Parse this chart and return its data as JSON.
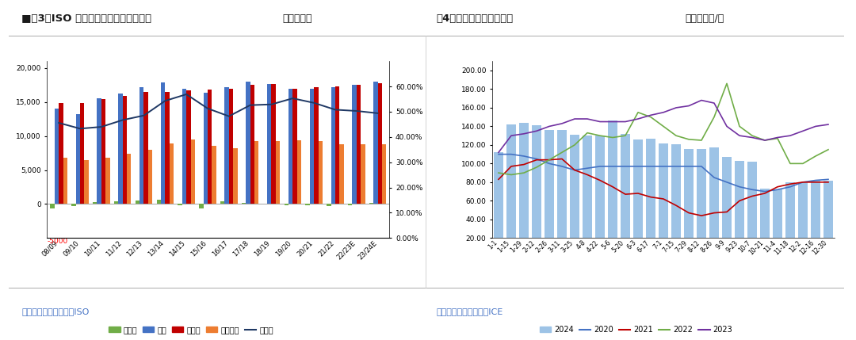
{
  "fig3": {
    "title_left": "■图3：ISO 对全球食糖供需格局的预估",
    "title_right": "单位：万吨",
    "categories": [
      "08/09",
      "09/10",
      "10/11",
      "11/12",
      "12/13",
      "13/14",
      "14/15",
      "15/16",
      "16/17",
      "17/18",
      "18/19",
      "19/20",
      "20/21",
      "21/22",
      "22/23E",
      "23/24E"
    ],
    "supply_gap": [
      -700,
      -300,
      250,
      450,
      550,
      650,
      -150,
      -600,
      400,
      150,
      50,
      -150,
      -200,
      -350,
      -150,
      200
    ],
    "production": [
      14000,
      13200,
      15500,
      16200,
      17200,
      17900,
      17000,
      16400,
      17200,
      18000,
      17600,
      16900,
      17000,
      17200,
      17500,
      18000
    ],
    "consumption": [
      14800,
      14900,
      15400,
      15900,
      16500,
      16500,
      16700,
      16800,
      17000,
      17500,
      17600,
      17000,
      17200,
      17300,
      17500,
      17800
    ],
    "end_stock": [
      6800,
      6400,
      6800,
      7400,
      8000,
      8900,
      9500,
      8600,
      8200,
      9200,
      9300,
      9400,
      9200,
      8800,
      8800,
      8800
    ],
    "stock_ratio": [
      0.456,
      0.433,
      0.44,
      0.467,
      0.485,
      0.543,
      0.569,
      0.513,
      0.482,
      0.526,
      0.529,
      0.553,
      0.535,
      0.508,
      0.503,
      0.494
    ],
    "bar_colors": {
      "supply_gap": "#70AD47",
      "production": "#4472C4",
      "consumption": "#C00000",
      "end_stock": "#ED7D31"
    },
    "line_color": "#1F3864",
    "legend_labels": [
      "供需差",
      "产量",
      "消费量",
      "期末库存",
      "库销比"
    ],
    "source": "数据来源：銀河期货，ISO",
    "ylim_left": [
      -5000,
      21000
    ],
    "ylim_right": [
      0.0,
      0.7
    ],
    "yticks_left": [
      0,
      5000,
      10000,
      15000,
      20000
    ],
    "yticks_right": [
      0.0,
      0.1,
      0.2,
      0.3,
      0.4,
      0.5,
      0.6
    ]
  },
  "fig4": {
    "title_left": "图4：原白糖主力合约价差",
    "title_right": "单位：美元/吨",
    "x_labels": [
      "1-1",
      "1-15",
      "1-29",
      "2-12",
      "2-26",
      "3-11",
      "3-25",
      "4-8",
      "4-22",
      "5-6",
      "5-20",
      "6-3",
      "6-17",
      "7-1",
      "7-15",
      "7-29",
      "8-12",
      "8-26",
      "9-9",
      "9-23",
      "10-7",
      "10-21",
      "11-4",
      "11-18",
      "12-2",
      "12-16",
      "12-30"
    ],
    "bar_2024": [
      112,
      142,
      144,
      141,
      136,
      136,
      131,
      130,
      130,
      146,
      132,
      126,
      127,
      122,
      121,
      116,
      116,
      117,
      107,
      103,
      102,
      73,
      72,
      80,
      80,
      82,
      82
    ],
    "line_2020": [
      110,
      110,
      108,
      105,
      100,
      97,
      93,
      95,
      97,
      97,
      97,
      97,
      97,
      97,
      97,
      97,
      97,
      85,
      80,
      75,
      72,
      70,
      72,
      75,
      80,
      82,
      83
    ],
    "line_2021": [
      83,
      97,
      99,
      104,
      104,
      105,
      93,
      88,
      82,
      75,
      67,
      68,
      64,
      62,
      55,
      47,
      44,
      47,
      48,
      60,
      65,
      68,
      75,
      78,
      80,
      80,
      80
    ],
    "line_2022": [
      90,
      88,
      90,
      96,
      104,
      112,
      120,
      133,
      130,
      128,
      130,
      155,
      150,
      140,
      130,
      126,
      125,
      150,
      186,
      140,
      130,
      125,
      127,
      100,
      100,
      108,
      115
    ],
    "line_2023": [
      112,
      130,
      132,
      135,
      140,
      143,
      148,
      148,
      145,
      145,
      145,
      148,
      152,
      155,
      160,
      162,
      168,
      165,
      140,
      130,
      128,
      125,
      128,
      130,
      135,
      140,
      142
    ],
    "colors": {
      "bar_2024": "#9DC3E6",
      "line_2020": "#4472C4",
      "line_2021": "#C00000",
      "line_2022": "#70AD47",
      "line_2023": "#7030A0"
    },
    "legend_labels": [
      "2024",
      "2020",
      "2021",
      "2022",
      "2023"
    ],
    "source": "数据来源：銀河期货，ICE",
    "ylim": [
      20,
      210
    ],
    "yticks": [
      20,
      40,
      60,
      80,
      100,
      120,
      140,
      160,
      180,
      200
    ]
  },
  "background_color": "#FFFFFF",
  "source_color": "#4472C4"
}
